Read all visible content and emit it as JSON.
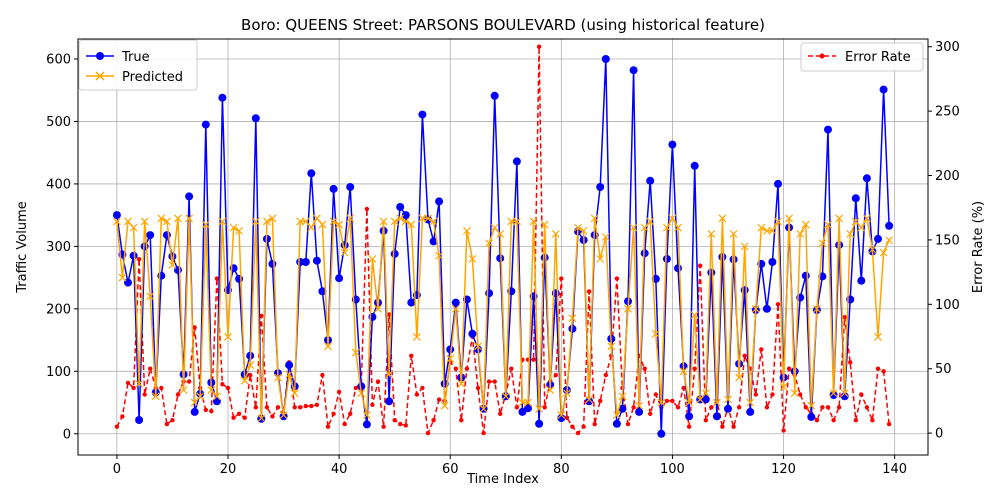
{
  "chart_data": {
    "type": "line",
    "title": "Boro: QUEENS Street: PARSONS BOULEVARD (using historical feature)",
    "xlabel": "Time Index",
    "ylabel": "Traffic Volume",
    "y2label": "Error Rate (%)",
    "xlim": [
      -7,
      146
    ],
    "ylim": [
      -34,
      632
    ],
    "y2lim": [
      -17,
      306
    ],
    "x_ticks": [
      "0",
      "20",
      "40",
      "60",
      "80",
      "100",
      "120",
      "140"
    ],
    "y_ticks": [
      "0",
      "100",
      "200",
      "300",
      "400",
      "500",
      "600"
    ],
    "y2_ticks": [
      "0",
      "50",
      "100",
      "150",
      "200",
      "250",
      "300"
    ],
    "grid": true,
    "legend_left_placement": "top-left",
    "legend_right_placement": "top-right",
    "series": [
      {
        "name": "True",
        "axis": "left",
        "color": "#0000ff",
        "marker": "circle",
        "style": "solid",
        "values": [
          350,
          287,
          242,
          285,
          22,
          300,
          318,
          66,
          253,
          318,
          284,
          262,
          95,
          380,
          35,
          64,
          495,
          82,
          52,
          538,
          230,
          265,
          248,
          95,
          125,
          505,
          24,
          312,
          272,
          97,
          28,
          110,
          76,
          275,
          275,
          417,
          277,
          228,
          150,
          392,
          249,
          302,
          395,
          215,
          76,
          15,
          187,
          210,
          325,
          52,
          288,
          363,
          350,
          210,
          222,
          511,
          343,
          308,
          372,
          80,
          135,
          210,
          90,
          215,
          160,
          135,
          40,
          225,
          541,
          281,
          60,
          228,
          436,
          35,
          41,
          220,
          16,
          282,
          78,
          225,
          25,
          70,
          168,
          324,
          310,
          52,
          318,
          395,
          600,
          152,
          16,
          40,
          212,
          582,
          35,
          289,
          405,
          248,
          0,
          280,
          463,
          265,
          108,
          28,
          429,
          55,
          55,
          258,
          28,
          283,
          40,
          279,
          112,
          230,
          35,
          198,
          272,
          200,
          275,
          400,
          90,
          330,
          100,
          218,
          253,
          27,
          198,
          252,
          487,
          62,
          302,
          60,
          215,
          377,
          245,
          409,
          292,
          312,
          551,
          333
        ]
      },
      {
        "name": "Predicted",
        "axis": "left",
        "color": "#ffa500",
        "marker": "x",
        "style": "solid",
        "values": [
          340,
          250,
          340,
          330,
          80,
          340,
          220,
          60,
          345,
          340,
          270,
          345,
          70,
          345,
          50,
          60,
          335,
          70,
          60,
          340,
          155,
          330,
          325,
          85,
          110,
          340,
          25,
          340,
          345,
          90,
          30,
          95,
          65,
          340,
          340,
          330,
          345,
          335,
          140,
          340,
          335,
          290,
          345,
          130,
          65,
          30,
          280,
          200,
          340,
          95,
          340,
          345,
          340,
          335,
          155,
          345,
          345,
          340,
          285,
          45,
          120,
          200,
          80,
          325,
          280,
          140,
          40,
          305,
          330,
          320,
          60,
          340,
          340,
          50,
          50,
          340,
          40,
          335,
          70,
          320,
          30,
          65,
          185,
          330,
          325,
          55,
          345,
          280,
          315,
          140,
          30,
          60,
          200,
          330,
          45,
          330,
          340,
          160,
          50,
          330,
          345,
          330,
          100,
          50,
          190,
          55,
          65,
          320,
          50,
          345,
          55,
          320,
          90,
          300,
          50,
          200,
          330,
          325,
          325,
          340,
          75,
          345,
          65,
          320,
          335,
          45,
          200,
          305,
          335,
          65,
          345,
          65,
          320,
          340,
          330,
          345,
          295,
          155,
          290,
          310
        ]
      },
      {
        "name": "Error Rate",
        "axis": "right",
        "color": "#ff0000",
        "marker": "dot",
        "style": "dashed",
        "values": [
          5,
          13,
          39,
          35,
          135,
          30,
          50,
          35,
          35,
          7,
          10,
          30,
          40,
          40,
          82,
          35,
          18,
          17,
          120,
          38,
          35,
          12,
          15,
          12,
          45,
          20,
          91,
          20,
          13,
          20,
          15,
          55,
          20,
          20,
          21,
          21,
          22,
          45,
          5,
          15,
          32,
          7,
          15,
          35,
          38,
          174,
          22,
          40,
          5,
          92,
          10,
          7,
          6,
          60,
          30,
          35,
          0,
          10,
          26,
          25,
          55,
          50,
          10,
          50,
          75,
          35,
          0,
          40,
          40,
          15,
          30,
          50,
          20,
          57,
          57,
          57,
          300,
          20,
          40,
          45,
          120,
          12,
          5,
          0,
          5,
          110,
          7,
          25,
          45,
          60,
          120,
          35,
          7,
          20,
          60,
          50,
          15,
          30,
          20,
          25,
          25,
          20,
          35,
          5,
          50,
          130,
          10,
          20,
          25,
          5,
          20,
          5,
          20,
          60,
          50,
          30,
          65,
          20,
          30,
          100,
          2,
          50,
          45,
          30,
          20,
          15,
          10,
          20,
          20,
          10,
          20,
          90,
          55,
          10,
          30,
          20,
          10,
          50,
          48,
          7
        ]
      }
    ]
  }
}
